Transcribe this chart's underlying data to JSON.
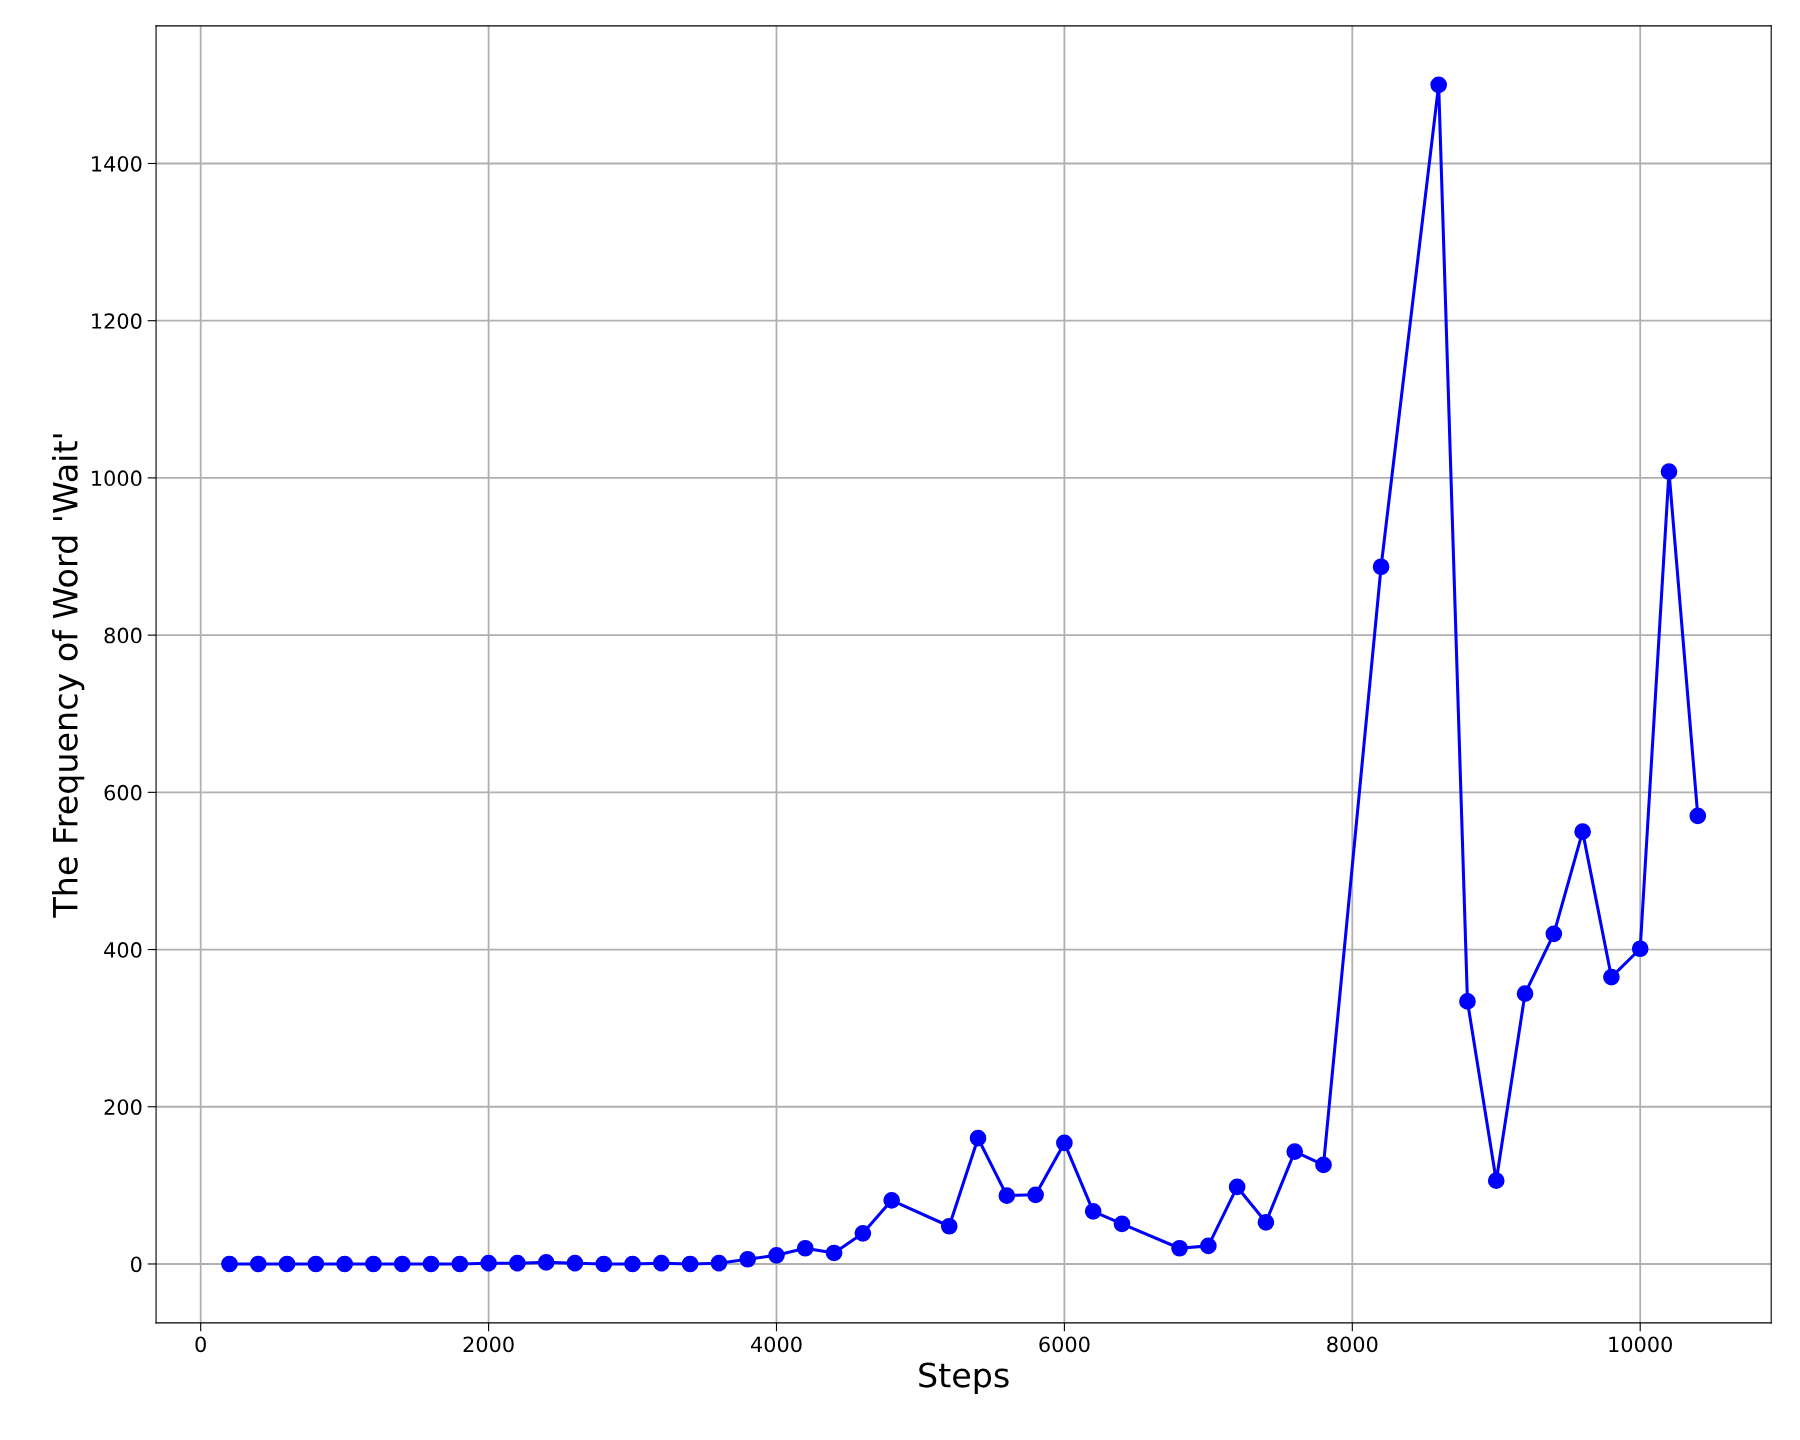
{
  "chart_data": {
    "type": "line",
    "xlabel": "Steps",
    "ylabel": "The Frequency of Word 'Wait'",
    "series": [
      {
        "color": "#0000ff",
        "x": [
          200,
          400,
          600,
          800,
          1000,
          1200,
          1400,
          1600,
          1800,
          2000,
          2200,
          2400,
          2600,
          2800,
          3000,
          3200,
          3400,
          3600,
          3800,
          4000,
          4200,
          4400,
          4600,
          4800,
          5200,
          5400,
          5600,
          5800,
          6000,
          6200,
          6400,
          6800,
          7000,
          7200,
          7400,
          7600,
          7800,
          8200,
          8600,
          8800,
          9000,
          9200,
          9400,
          9600,
          9800,
          10000,
          10200,
          10400
        ],
        "values": [
          0,
          0,
          0,
          0,
          0,
          0,
          0,
          0,
          0,
          1,
          1,
          2,
          1,
          0,
          0,
          1,
          0,
          1,
          6,
          11,
          20,
          14,
          39,
          81,
          48,
          160,
          87,
          88,
          154,
          67,
          51,
          20,
          23,
          98,
          53,
          143,
          126,
          887,
          1500,
          334,
          106,
          344,
          420,
          550,
          365,
          401,
          1008,
          570
        ]
      }
    ],
    "xlim": [
      -310,
      10910
    ],
    "ylim": [
      -75,
      1575
    ],
    "xticks": [
      0,
      2000,
      4000,
      6000,
      8000,
      10000
    ],
    "yticks": [
      0,
      200,
      400,
      600,
      800,
      1000,
      1200,
      1400
    ],
    "grid": true,
    "marker": "circle",
    "line_style": "solid",
    "legend": false
  }
}
